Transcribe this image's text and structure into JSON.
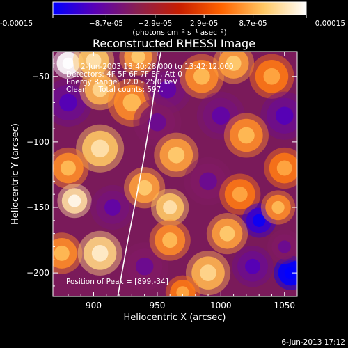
{
  "chart_data": {
    "type": "heatmap",
    "title": "Reconstructed RHESSI Image",
    "xlabel": "Heliocentric X (arcsec)",
    "ylabel": "Heliocentric Y (arcsec)",
    "xlim": [
      868,
      1060
    ],
    "ylim": [
      -218,
      -31
    ],
    "x_ticks": [
      900,
      950,
      1000,
      1050
    ],
    "y_ticks": [
      -50,
      -100,
      -150,
      -200
    ],
    "colorbar": {
      "range": [
        -0.00015,
        0.00015
      ],
      "tick_values": [
        -0.00015,
        -8.7e-05,
        -2.9e-05,
        2.9e-05,
        8.7e-05,
        0.00015
      ],
      "tick_labels": [
        "-0.00015",
        "−8.7e-05",
        "−2.9e-05",
        "2.9e-05",
        "8.7e-05",
        "0.00015"
      ],
      "units_label": "(photons cm⁻² s⁻¹ asec⁻²)",
      "colormap": [
        "#0000ff",
        "#5a00b4",
        "#8a2050",
        "#c81e00",
        "#ff6400",
        "#ffc864",
        "#ffffff"
      ]
    },
    "annotations": {
      "time": "2-Jun-2003 13:40:28.000 to 13:42:12.000",
      "detectors": "Detectors: 4F 5F 6F 7F 8F, Att 0",
      "energy": "Energy Range: 12.0 - 25.0 keV",
      "clean": "Clean     Total counts: 597.",
      "peak": "Position of Peak = [899,-34]"
    },
    "limb_curve": [
      [
        919,
        -218
      ],
      [
        925,
        -185
      ],
      [
        932,
        -150
      ],
      [
        939,
        -115
      ],
      [
        945,
        -80
      ],
      [
        950,
        -45
      ],
      [
        953,
        -31
      ]
    ],
    "map_blobs": [
      {
        "x": 880,
        "y": -40,
        "v": 0.00015,
        "r": 9
      },
      {
        "x": 900,
        "y": -38,
        "v": 0.0001,
        "r": 12
      },
      {
        "x": 935,
        "y": -35,
        "v": 8e-05,
        "r": 11
      },
      {
        "x": 880,
        "y": -70,
        "v": -8e-05,
        "r": 14
      },
      {
        "x": 905,
        "y": -60,
        "v": 9e-05,
        "r": 12
      },
      {
        "x": 930,
        "y": -70,
        "v": 7e-05,
        "r": 14
      },
      {
        "x": 958,
        "y": -60,
        "v": -7e-05,
        "r": 14
      },
      {
        "x": 985,
        "y": -50,
        "v": 7e-05,
        "r": 13
      },
      {
        "x": 1010,
        "y": -40,
        "v": 8e-05,
        "r": 12
      },
      {
        "x": 1040,
        "y": -50,
        "v": 6e-05,
        "r": 13
      },
      {
        "x": 1050,
        "y": -80,
        "v": -8e-05,
        "r": 14
      },
      {
        "x": 950,
        "y": -85,
        "v": -6e-05,
        "r": 14
      },
      {
        "x": 965,
        "y": -110,
        "v": 8e-05,
        "r": 13
      },
      {
        "x": 1000,
        "y": -80,
        "v": -7e-05,
        "r": 14
      },
      {
        "x": 1020,
        "y": -95,
        "v": 7e-05,
        "r": 13
      },
      {
        "x": 905,
        "y": -105,
        "v": 0.0001,
        "r": 14
      },
      {
        "x": 880,
        "y": -120,
        "v": 7e-05,
        "r": 12
      },
      {
        "x": 885,
        "y": -145,
        "v": 0.00012,
        "r": 10
      },
      {
        "x": 915,
        "y": -150,
        "v": -7e-05,
        "r": 13
      },
      {
        "x": 940,
        "y": -135,
        "v": 8e-05,
        "r": 12
      },
      {
        "x": 960,
        "y": -150,
        "v": 0.0001,
        "r": 11
      },
      {
        "x": 990,
        "y": -130,
        "v": -6e-05,
        "r": 14
      },
      {
        "x": 1015,
        "y": -140,
        "v": 6e-05,
        "r": 12
      },
      {
        "x": 1050,
        "y": -120,
        "v": 6e-05,
        "r": 12
      },
      {
        "x": 1030,
        "y": -160,
        "v": -0.00012,
        "r": 10
      },
      {
        "x": 1045,
        "y": -150,
        "v": 7e-05,
        "r": 10
      },
      {
        "x": 1005,
        "y": -170,
        "v": 8e-05,
        "r": 12
      },
      {
        "x": 875,
        "y": -185,
        "v": 7e-05,
        "r": 12
      },
      {
        "x": 905,
        "y": -185,
        "v": 0.00011,
        "r": 13
      },
      {
        "x": 940,
        "y": -195,
        "v": -6e-05,
        "r": 14
      },
      {
        "x": 960,
        "y": -175,
        "v": 7e-05,
        "r": 12
      },
      {
        "x": 990,
        "y": -200,
        "v": 9e-05,
        "r": 13
      },
      {
        "x": 1025,
        "y": -195,
        "v": -8e-05,
        "r": 12
      },
      {
        "x": 1055,
        "y": -200,
        "v": -0.00015,
        "r": 10
      },
      {
        "x": 1050,
        "y": -180,
        "v": -6e-05,
        "r": 10
      },
      {
        "x": 970,
        "y": -215,
        "v": 6e-05,
        "r": 10
      }
    ]
  },
  "footer": {
    "date": "6-Jun-2013 17:12"
  }
}
